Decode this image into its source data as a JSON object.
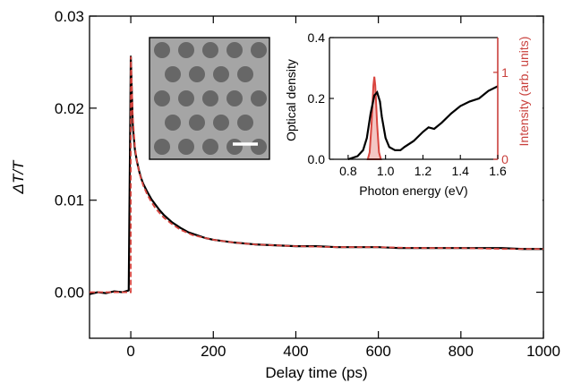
{
  "chart_data": [
    {
      "type": "line",
      "title": "",
      "xlabel": "Delay time (ps)",
      "ylabel": "ΔT/T",
      "xlim": [
        -100,
        1000
      ],
      "ylim": [
        -0.005,
        0.03
      ],
      "xticks": [
        0,
        200,
        400,
        600,
        800,
        1000
      ],
      "xtick_labels": [
        "0",
        "200",
        "400",
        "600",
        "800",
        "1000"
      ],
      "yticks": [
        0.0,
        0.01,
        0.02,
        0.03
      ],
      "ytick_labels": [
        "0.00",
        "0.01",
        "0.02",
        "0.03"
      ],
      "grid": false,
      "legend": "none",
      "series": [
        {
          "color": "#000000",
          "style": "solid",
          "x": [
            -100,
            -80,
            -60,
            -40,
            -20,
            -5,
            0,
            2,
            5,
            10,
            15,
            20,
            25,
            30,
            40,
            50,
            60,
            70,
            80,
            90,
            100,
            120,
            140,
            160,
            180,
            200,
            250,
            300,
            350,
            400,
            450,
            500,
            550,
            600,
            650,
            700,
            750,
            800,
            850,
            900,
            950,
            1000
          ],
          "y": [
            -0.0002,
            0.0,
            -0.0001,
            0.0001,
            0.0,
            0.0002,
            0.0256,
            0.0225,
            0.018,
            0.0155,
            0.0142,
            0.0132,
            0.0124,
            0.0118,
            0.0109,
            0.0101,
            0.0095,
            0.0089,
            0.0084,
            0.008,
            0.0076,
            0.007,
            0.0065,
            0.0062,
            0.0059,
            0.0057,
            0.0054,
            0.0052,
            0.0051,
            0.005,
            0.005,
            0.0049,
            0.0049,
            0.0049,
            0.0048,
            0.0048,
            0.0048,
            0.0048,
            0.0048,
            0.0048,
            0.0047,
            0.0047
          ]
        },
        {
          "color": "#d9453f",
          "style": "dashed",
          "x": [
            -100,
            0,
            0.1,
            5,
            10,
            15,
            20,
            30,
            40,
            50,
            60,
            70,
            80,
            100,
            120,
            150,
            200,
            250,
            300,
            400,
            500,
            600,
            700,
            800,
            900,
            1000
          ],
          "y": [
            0.0,
            0.0,
            0.0256,
            0.019,
            0.0158,
            0.0142,
            0.0131,
            0.0116,
            0.0106,
            0.0098,
            0.0091,
            0.0086,
            0.0081,
            0.0074,
            0.0068,
            0.0062,
            0.0057,
            0.0054,
            0.0052,
            0.005,
            0.0049,
            0.0049,
            0.0048,
            0.0048,
            0.0047,
            0.0047
          ]
        }
      ]
    },
    {
      "type": "line",
      "title": "",
      "xlabel": "Photon energy (eV)",
      "ylabel": "Optical density",
      "y2label": "Intensity (arb. units)",
      "xlim": [
        0.7,
        1.6
      ],
      "ylim": [
        0.0,
        0.4
      ],
      "y2lim": [
        0,
        1.4
      ],
      "xticks": [
        0.8,
        1.0,
        1.2,
        1.4,
        1.6
      ],
      "xtick_labels": [
        "0.8",
        "1.0",
        "1.2",
        "1.4",
        "1.6"
      ],
      "yticks": [
        0.0,
        0.2,
        0.4
      ],
      "ytick_labels": [
        "0.0",
        "0.2",
        "0.4"
      ],
      "y2ticks": [
        0,
        1
      ],
      "y2tick_labels": [
        "0",
        "1"
      ],
      "y2_color": "#c9403c",
      "series": [
        {
          "color": "#000000",
          "axis": "left",
          "style": "solid",
          "x": [
            0.8,
            0.85,
            0.88,
            0.9,
            0.92,
            0.94,
            0.955,
            0.97,
            0.98,
            1.0,
            1.02,
            1.05,
            1.08,
            1.1,
            1.15,
            1.2,
            1.23,
            1.26,
            1.3,
            1.35,
            1.4,
            1.45,
            1.5,
            1.55,
            1.6
          ],
          "y": [
            0.0,
            0.01,
            0.03,
            0.07,
            0.15,
            0.21,
            0.22,
            0.19,
            0.14,
            0.07,
            0.04,
            0.03,
            0.03,
            0.04,
            0.06,
            0.09,
            0.105,
            0.1,
            0.12,
            0.15,
            0.175,
            0.19,
            0.2,
            0.225,
            0.24
          ]
        },
        {
          "color": "#d9453f",
          "axis": "right",
          "fill": "#f3c6c4",
          "x": [
            0.905,
            0.915,
            0.925,
            0.935,
            0.94,
            0.945,
            0.955,
            0.965,
            0.975
          ],
          "y": [
            0.0,
            0.08,
            0.4,
            0.85,
            0.95,
            0.85,
            0.4,
            0.08,
            0.0
          ]
        }
      ]
    }
  ]
}
